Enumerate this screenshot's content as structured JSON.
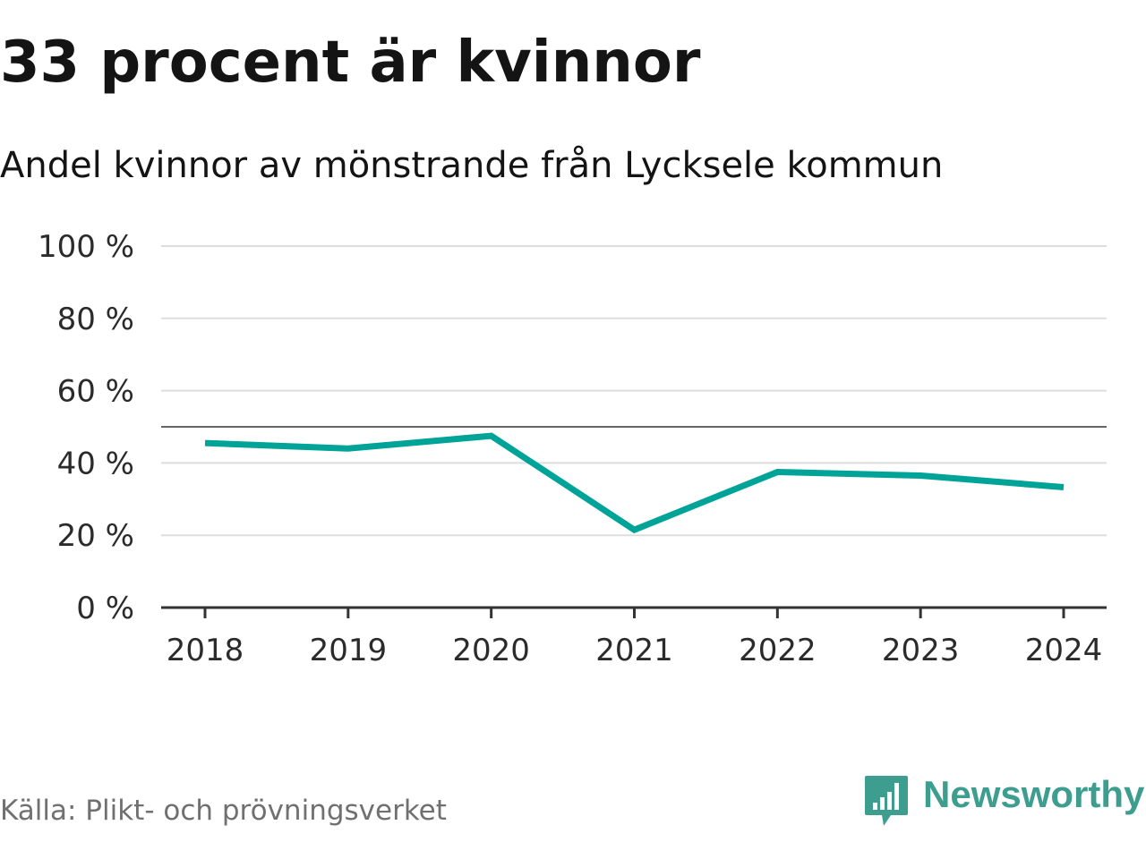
{
  "header": {
    "title": "33 procent är kvinnor",
    "subtitle": "Andel kvinnor av mönstrande från Lycksele kommun"
  },
  "chart_data": {
    "type": "line",
    "title": "33 procent är kvinnor",
    "subtitle": "Andel kvinnor av mönstrande från Lycksele kommun",
    "xlabel": "",
    "ylabel": "",
    "categories": [
      "2018",
      "2019",
      "2020",
      "2021",
      "2022",
      "2023",
      "2024"
    ],
    "series": [
      {
        "name": "Andel kvinnor",
        "values": [
          45.5,
          44,
          47.5,
          21.5,
          37.5,
          36.5,
          33.3
        ],
        "color": "#00a398"
      }
    ],
    "reference_line": {
      "value": 50,
      "color": "#666666"
    },
    "ylim": [
      0,
      100
    ],
    "yticks": [
      0,
      20,
      40,
      60,
      80,
      100
    ],
    "ytick_labels": [
      "0 %",
      "20 %",
      "40 %",
      "60 %",
      "80 %",
      "100 %"
    ],
    "grid": true,
    "gridline_color": "#dddddd",
    "axis_color": "#333333"
  },
  "footer": {
    "source": "Källa: Plikt- och prövningsverket",
    "brand": "Newsworthy",
    "brand_color": "#3d9d8e",
    "brand_icon": "newsworthy-logo-icon"
  }
}
